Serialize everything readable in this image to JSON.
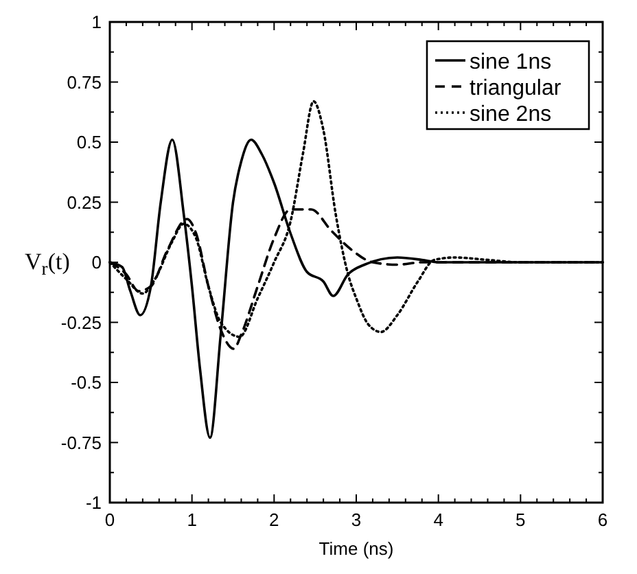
{
  "chart_data": {
    "type": "line",
    "xlabel": "Time (ns)",
    "ylabel": "V$_{r}$(t)",
    "xlim": [
      0,
      6
    ],
    "ylim": [
      -1,
      1
    ],
    "xticks": [
      0,
      {
        "value": 0.2,
        "label": null
      },
      {
        "value": 0.4,
        "label": null
      },
      {
        "value": 0.6,
        "label": null
      },
      {
        "value": 0.8,
        "label": null
      },
      1,
      {
        "value": 1.2,
        "label": null
      },
      {
        "value": 1.4,
        "label": null
      },
      {
        "value": 1.6,
        "label": null
      },
      {
        "value": 1.8,
        "label": null
      },
      2,
      {
        "value": 2.2,
        "label": null
      },
      {
        "value": 2.4,
        "label": null
      },
      {
        "value": 2.6,
        "label": null
      },
      {
        "value": 2.8,
        "label": null
      },
      3,
      {
        "value": 3.2,
        "label": null
      },
      {
        "value": 3.4,
        "label": null
      },
      {
        "value": 3.6,
        "label": null
      },
      {
        "value": 3.8,
        "label": null
      },
      4,
      {
        "value": 4.2,
        "label": null
      },
      {
        "value": 4.4,
        "label": null
      },
      {
        "value": 4.6,
        "label": null
      },
      {
        "value": 4.8,
        "label": null
      },
      5,
      {
        "value": 5.2,
        "label": null
      },
      {
        "value": 5.4,
        "label": null
      },
      {
        "value": 5.6,
        "label": null
      },
      {
        "value": 5.8,
        "label": null
      },
      6
    ],
    "yticks": [
      -1,
      {
        "value": -0.875,
        "label": null
      },
      -0.75,
      {
        "value": -0.625,
        "label": null
      },
      -0.5,
      {
        "value": -0.375,
        "label": null
      },
      -0.25,
      {
        "value": -0.125,
        "label": null
      },
      0,
      {
        "value": 0.125,
        "label": null
      },
      0.25,
      {
        "value": 0.375,
        "label": null
      },
      0.5,
      {
        "value": 0.625,
        "label": null
      },
      0.75,
      {
        "value": 0.875,
        "label": null
      },
      1
    ],
    "grid": false,
    "legend": "top right",
    "marker": "none",
    "series": [
      {
        "name": "sine 1ns",
        "color": "#000000",
        "line_style": "solid",
        "x": [
          0,
          0.15,
          0.25,
          0.37,
          0.5,
          0.62,
          0.76,
          0.9,
          1.0,
          1.1,
          1.22,
          1.35,
          1.5,
          1.6,
          1.72,
          1.85,
          2.0,
          2.2,
          2.4,
          2.6,
          2.72,
          2.9,
          3.1,
          3.5,
          3.8,
          4.0,
          6
        ],
        "values": [
          0,
          -0.02,
          -0.12,
          -0.22,
          -0.1,
          0.25,
          0.51,
          0.2,
          -0.1,
          -0.45,
          -0.73,
          -0.3,
          0.25,
          0.42,
          0.51,
          0.45,
          0.33,
          0.12,
          -0.04,
          -0.08,
          -0.14,
          -0.05,
          -0.01,
          0.02,
          0.01,
          0,
          0
        ]
      },
      {
        "name": "triangular",
        "color": "#000000",
        "line_style": "dashed",
        "x": [
          0,
          0.2,
          0.35,
          0.5,
          0.7,
          0.94,
          1.05,
          1.2,
          1.35,
          1.51,
          1.6,
          1.8,
          2.0,
          2.2,
          2.45,
          2.7,
          2.95,
          3.2,
          3.5,
          3.8,
          6
        ],
        "values": [
          0,
          -0.05,
          -0.12,
          -0.1,
          0.05,
          0.18,
          0.12,
          -0.1,
          -0.28,
          -0.36,
          -0.3,
          -0.1,
          0.1,
          0.22,
          0.22,
          0.13,
          0.05,
          0,
          -0.01,
          0,
          0
        ]
      },
      {
        "name": "sine 2ns",
        "color": "#000000",
        "line_style": "dotted",
        "x": [
          0,
          0.2,
          0.4,
          0.55,
          0.75,
          0.9,
          1.05,
          1.2,
          1.35,
          1.58,
          1.8,
          2.0,
          2.2,
          2.35,
          2.48,
          2.6,
          2.75,
          2.9,
          3.0,
          3.15,
          3.3,
          3.5,
          3.75,
          3.95,
          4.2,
          4.6,
          5,
          6
        ],
        "values": [
          0,
          -0.07,
          -0.13,
          -0.07,
          0.08,
          0.16,
          0.1,
          -0.1,
          -0.25,
          -0.31,
          -0.15,
          0,
          0.17,
          0.45,
          0.67,
          0.55,
          0.2,
          -0.05,
          -0.15,
          -0.26,
          -0.29,
          -0.22,
          -0.08,
          0.01,
          0.02,
          0.01,
          0,
          0
        ]
      }
    ]
  }
}
